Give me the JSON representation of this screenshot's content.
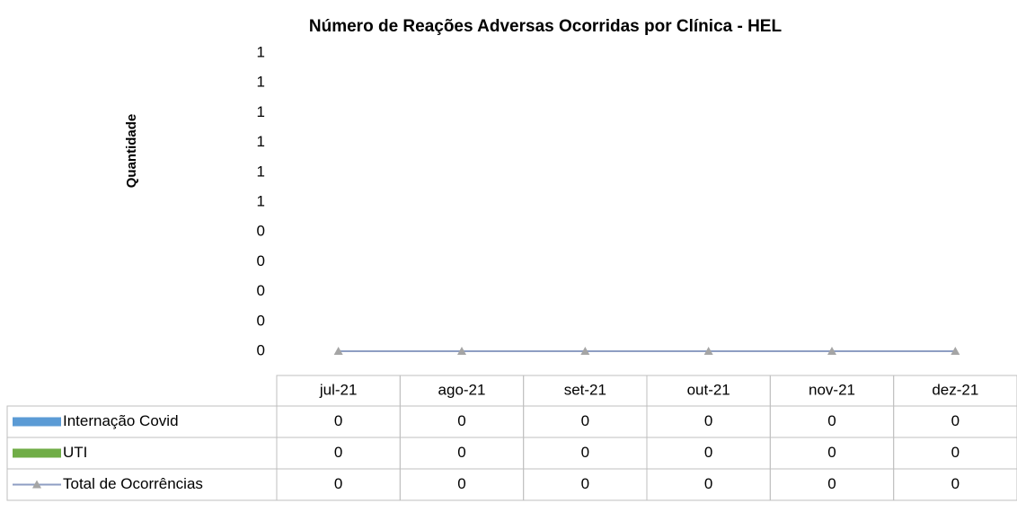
{
  "chart_data": {
    "type": "bar",
    "title": "Número de Reações Adversas Ocorridas por Clínica - HEL",
    "y_label": "Quantidade",
    "categories": [
      "jul-21",
      "ago-21",
      "set-21",
      "out-21",
      "nov-21",
      "dez-21"
    ],
    "series": [
      {
        "name": "Internação Covid",
        "type": "bar",
        "color": "#5b9bd5",
        "values": [
          0,
          0,
          0,
          0,
          0,
          0
        ]
      },
      {
        "name": "UTI",
        "type": "bar",
        "color": "#70ad47",
        "values": [
          0,
          0,
          0,
          0,
          0,
          0
        ]
      },
      {
        "name": "Total de Ocorrências",
        "type": "line",
        "color": "#a5a5a5",
        "line_color": "#8e9ec3",
        "values": [
          0,
          0,
          0,
          0,
          0,
          0
        ]
      }
    ],
    "ylim": [
      0,
      1
    ],
    "yticks": [
      0,
      {
        "value": 0.1,
        "label": "0"
      },
      {
        "value": 0.2,
        "label": "0"
      },
      {
        "value": 0.3,
        "label": "0"
      },
      {
        "value": 0.4,
        "label": "0"
      },
      {
        "value": 0.5,
        "label": "1"
      },
      {
        "value": 0.6,
        "label": "1"
      },
      {
        "value": 0.7,
        "label": "1"
      },
      {
        "value": 0.8,
        "label": "1"
      },
      {
        "value": 0.9,
        "label": "1"
      },
      1
    ],
    "grid": false,
    "data_table": true
  }
}
